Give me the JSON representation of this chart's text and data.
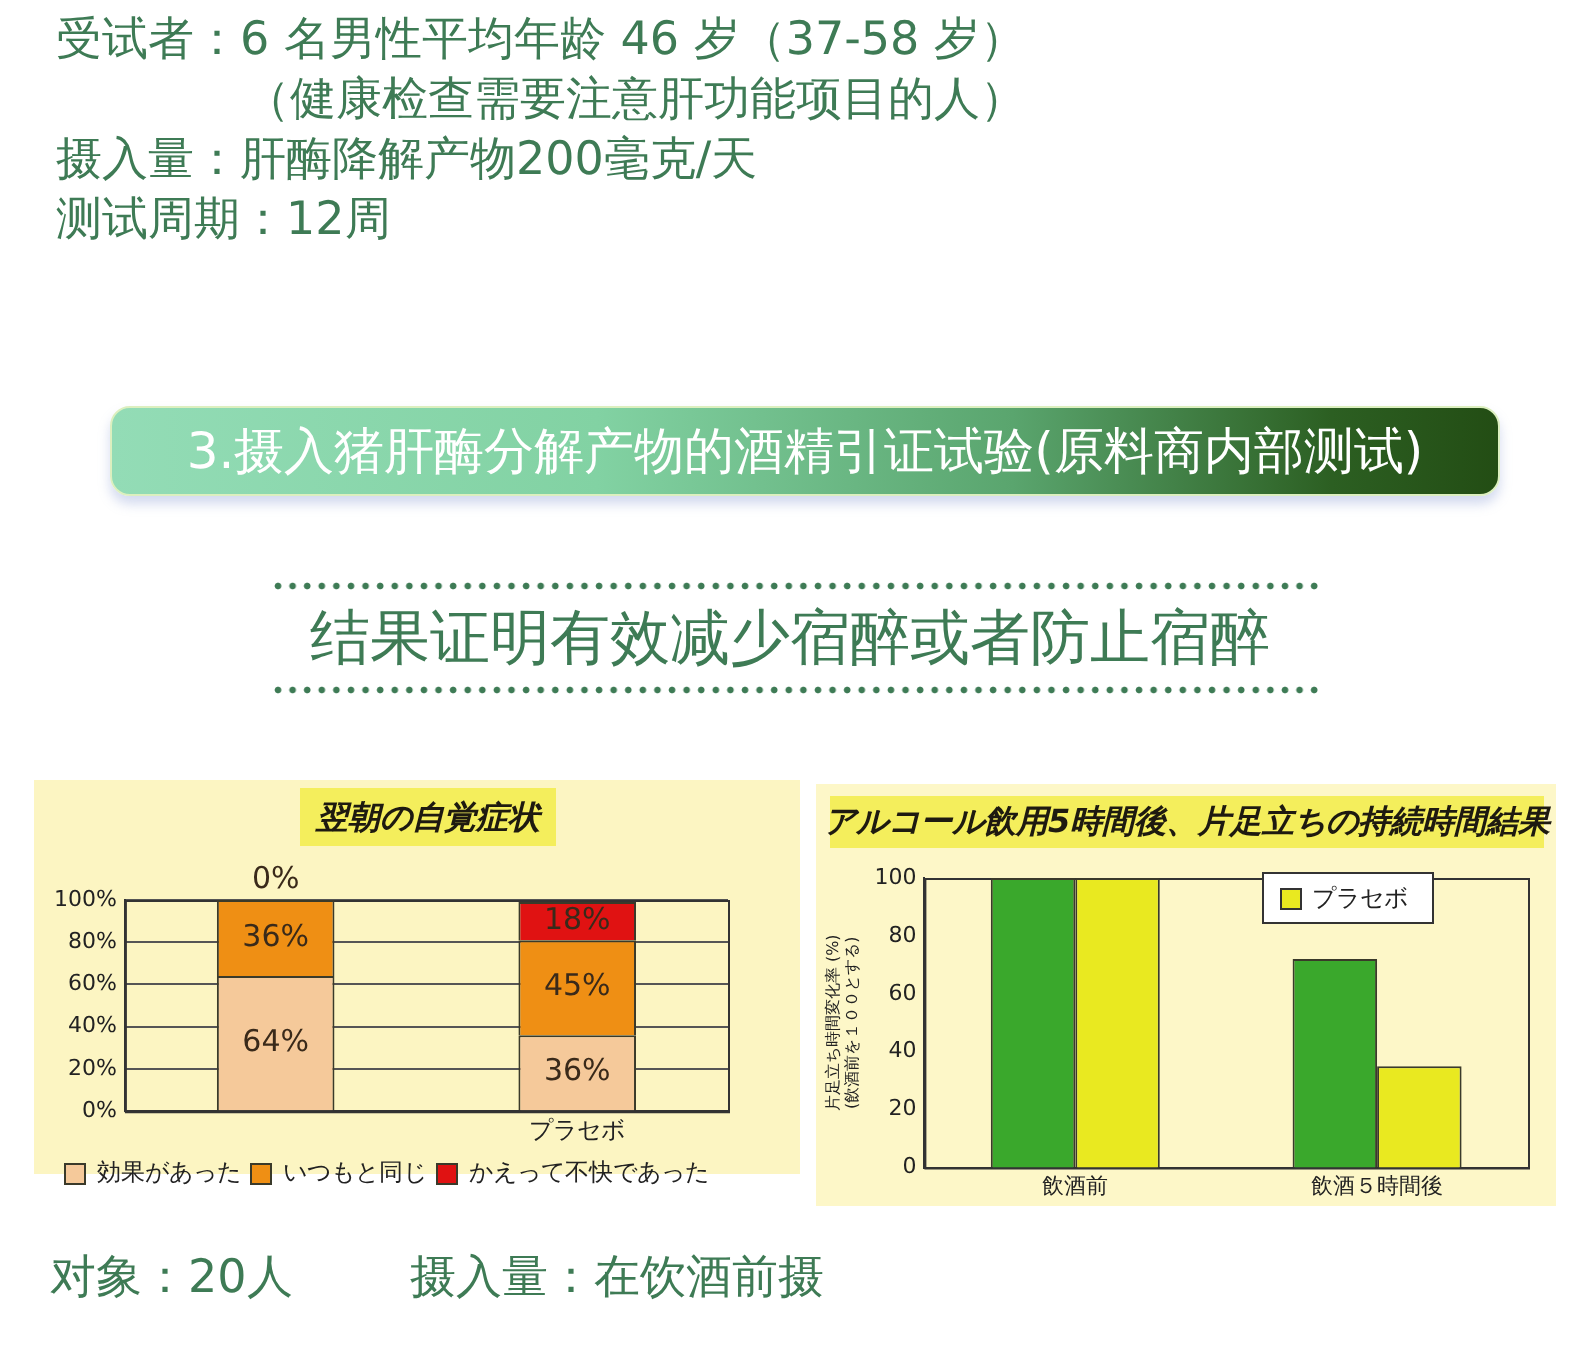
{
  "chart_data": [
    {
      "type": "other",
      "title": "3.摄入猪肝酶分解产物的酒精引证试验(原料商内部测试)",
      "subtitle": "结果证明有效减少宿醉或者防止宿醉",
      "annotations": [
        "受试者：6 名男性平均年龄 46 岁（37-58 岁）",
        "（健康检查需要注意肝功能项目的人）",
        "摄入量：肝酶降解产物200毫克/天",
        "测试周期：12周"
      ]
    },
    {
      "type": "bar",
      "title": "翌朝の自覚症状",
      "categories": [
        null,
        "プラセボ"
      ],
      "stacked": true,
      "series": [
        {
          "name": "効果があった",
          "color": "#f5c99a",
          "values": [
            64,
            36
          ],
          "value_labels": [
            "64%",
            "36%"
          ]
        },
        {
          "name": "いつもと同じ",
          "color": "#ef8f14",
          "values": [
            36,
            45
          ],
          "value_labels": [
            "36%",
            "45%"
          ]
        },
        {
          "name": "かえって不快であった",
          "color": "#e01212",
          "values": [
            0,
            18
          ],
          "value_labels": [
            "0%",
            "18%"
          ]
        }
      ],
      "ylim": [
        0,
        100
      ],
      "yticks": [
        {
          "value": 0,
          "label": "0%"
        },
        {
          "value": 20,
          "label": "20%"
        },
        {
          "value": 40,
          "label": "40%"
        },
        {
          "value": 60,
          "label": "60%"
        },
        {
          "value": 80,
          "label": "80%"
        },
        {
          "value": 100,
          "label": "100%"
        }
      ],
      "grid": "y",
      "legend": "bottom"
    },
    {
      "type": "bar",
      "title": "アルコール飲用5時間後、片足立ちの持続時間結果",
      "ylabel": "片足立ち時間変化率 (%)\n(飲酒前を１００とする)",
      "categories": [
        "飲酒前",
        "飲酒５時間後"
      ],
      "series": [
        {
          "color": "#3aa82c",
          "values": [
            100,
            72
          ]
        },
        {
          "name": "プラセボ",
          "color": "#e9e920",
          "values": [
            100,
            35
          ]
        }
      ],
      "ylim": [
        0,
        100
      ],
      "yticks": [
        0,
        20,
        40,
        60,
        80,
        100
      ],
      "grid": false,
      "legend": "top right"
    },
    {
      "type": "other",
      "annotations": [
        "对象：20人",
        "摄入量：在饮酒前摄"
      ]
    }
  ]
}
